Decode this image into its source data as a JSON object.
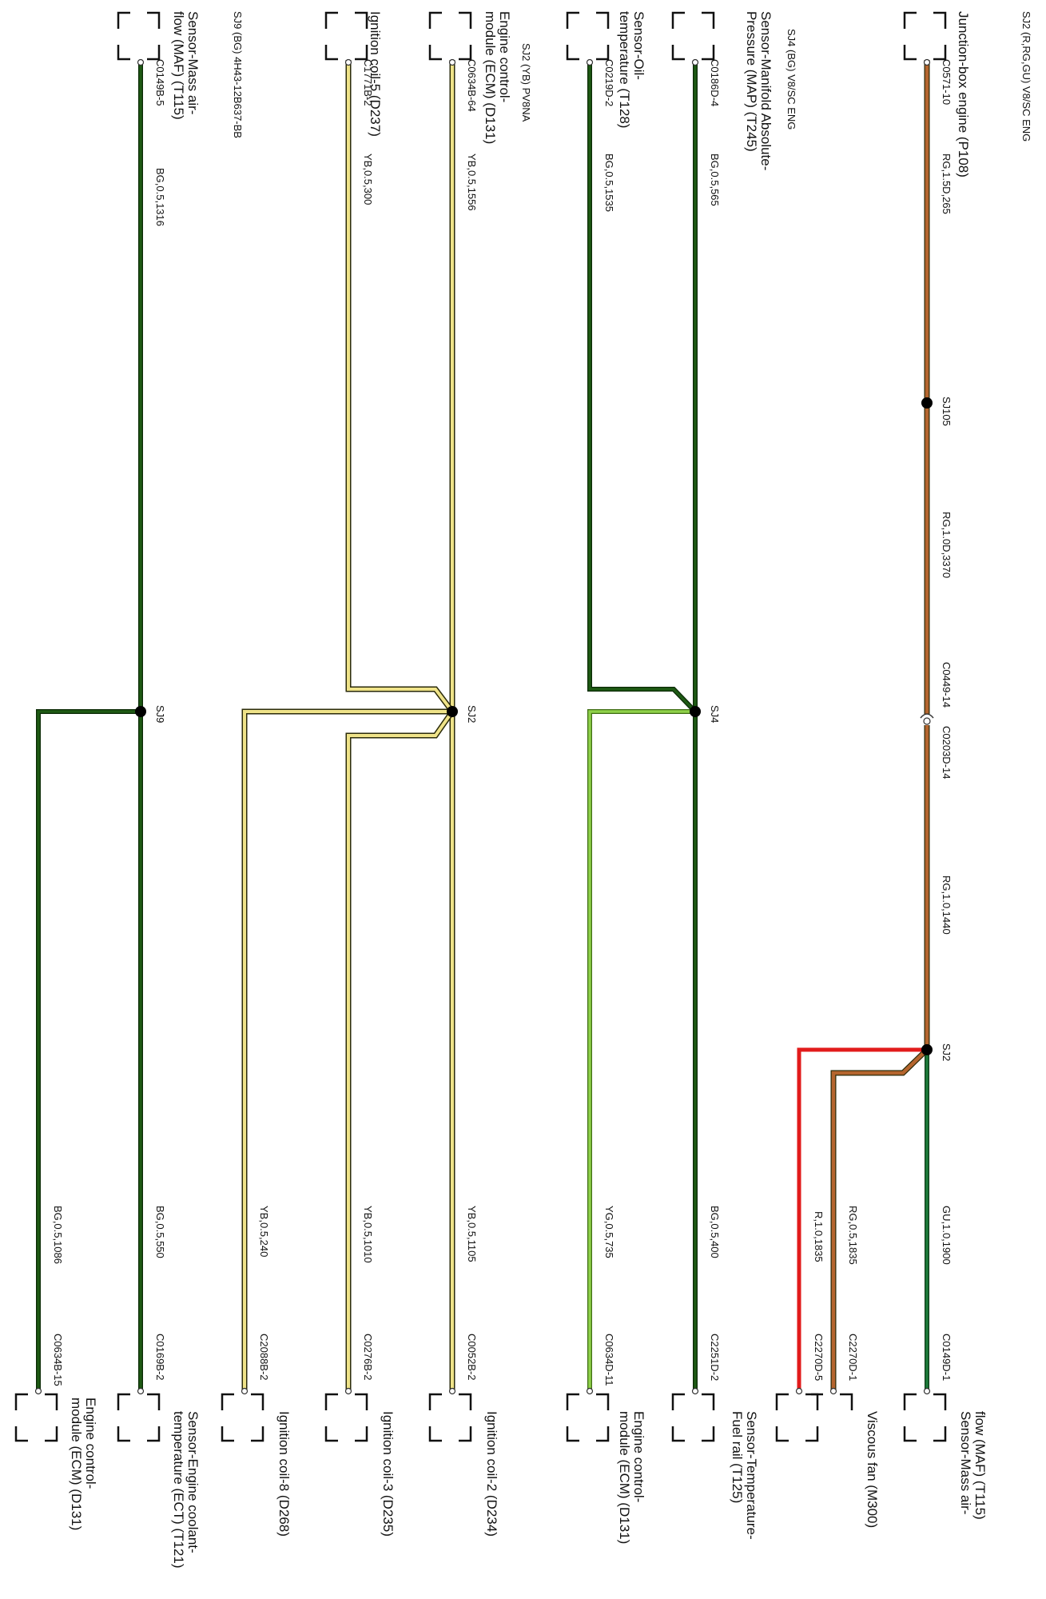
{
  "header": {
    "sj2_rg": "SJ2 (R,RG,GU) V8/SC ENG",
    "sj4_bg": "SJ4 (BG) V8/SC ENG",
    "sj2_yb": "SJ2 (YB) PV8NA",
    "sj9_bg": "SJ9 (BG) 4H43-12B637-BB"
  },
  "colors": {
    "rg": "#b5652e",
    "red": "#e21b1b",
    "bg": "#1e5a14",
    "gu": "#1d7a3a",
    "yb": "#efe389",
    "yg": "#8fd14a",
    "outline": "#2b2b0a"
  },
  "circuit_rg": {
    "start_component": "Junction-box engine (P108)",
    "start_connector": "C0571-10",
    "wire_1": "RG,1.5D,265",
    "splice_1": "SJ105",
    "wire_2": "RG,1.0D,3370",
    "inline_connector_a": "C0449-14",
    "inline_connector_b": "C0203D-14",
    "wire_3": "RG,1.0,1440",
    "splice_2": "SJ2",
    "branches": [
      {
        "wire": "GU,1.0,1900",
        "connector": "C0149D-1",
        "component": "Sensor-Mass air-flow (MAF) (T115)"
      },
      {
        "wire": "RG,0.5,1835",
        "connector": "C2270D-1",
        "component": "Viscous fan (M300)"
      },
      {
        "wire": "R,1.0,1835",
        "connector": "C2270D-5",
        "component": ""
      }
    ]
  },
  "circuit_sj4": {
    "comp_a": "Sensor-Manifold Absolute-Pressure (MAP) (T245)",
    "conn_a": "C0186D-4",
    "wire_a": "BG,0.5,565",
    "comp_b": "Sensor-Oil-temperature (T128)",
    "conn_b": "C0219D-2",
    "wire_b": "BG,0.5,1535",
    "splice": "SJ4",
    "branches": [
      {
        "wire": "BG,0.5,400",
        "connector": "C2251D-2",
        "component": "Sensor-Temperature-Fuel rail (T125)"
      },
      {
        "wire": "YG,0.5,735",
        "connector": "C0634D-11",
        "component": "Engine control-module (ECM) (D131)"
      }
    ]
  },
  "circuit_sj2_yb": {
    "comp_a": "Engine control-module (ECM) (D131)",
    "conn_a": "C0634B-64",
    "wire_a": "YB,0.5,1556",
    "comp_b": "Ignition coil-5 (D237)",
    "conn_b": "C1771B-2",
    "wire_b": "YB,0.5,300",
    "splice": "SJ2",
    "branches": [
      {
        "wire": "YB,0.5,1105",
        "connector": "C0052B-2",
        "component": "Ignition coil-2 (D234)"
      },
      {
        "wire": "YB,0.5,1010",
        "connector": "C0276B-2",
        "component": "Ignition coil-3 (D235)"
      },
      {
        "wire": "YB,0.5,240",
        "connector": "C2088B-2",
        "component": "Ignition coil-8 (D268)"
      }
    ]
  },
  "circuit_sj9": {
    "comp_a": "Sensor-Mass air-flow (MAF) (T115)",
    "conn_a": "C0149B-5",
    "wire_a": "BG,0.5,1316",
    "splice": "SJ9",
    "branches": [
      {
        "wire": "BG,0.5,550",
        "connector": "C0169B-2",
        "component": "Sensor-Engine coolant-temperature (ECT) (T121)"
      },
      {
        "wire": "BG,0.5,1086",
        "connector": "C0634B-15",
        "component": "Engine control-module (ECM) (D131)"
      }
    ]
  }
}
